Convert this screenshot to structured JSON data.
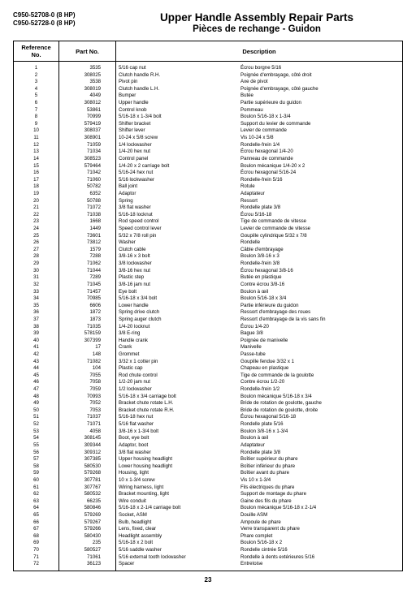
{
  "header": {
    "models": [
      "C950-52708-0 (8 HP)",
      "C950-52728-0 (8 HP)"
    ],
    "title_en": "Upper Handle Assembly Repair Parts",
    "title_fr": "Pièces de rechange - Guidon"
  },
  "columns": {
    "ref": "Reference No.",
    "part": "Part No.",
    "desc": "Description"
  },
  "page_number": "23",
  "rows": [
    {
      "ref": "1",
      "part": "3535",
      "en": "5/16 cap nut",
      "fr": "Écrou borgne 5/16"
    },
    {
      "ref": "2",
      "part": "308025",
      "en": "Clutch handle R.H.",
      "fr": "Poignée d'embrayage, côté droit"
    },
    {
      "ref": "3",
      "part": "3538",
      "en": "Pivot pin",
      "fr": "Axe de pivot"
    },
    {
      "ref": "4",
      "part": "308019",
      "en": "Clutch handle L.H.",
      "fr": "Poignée d'embrayage, côté gauche"
    },
    {
      "ref": "5",
      "part": "4049",
      "en": "Bumper",
      "fr": "Butée"
    },
    {
      "ref": "6",
      "part": "308012",
      "en": "Upper handle",
      "fr": "Partie supérieure du guidon"
    },
    {
      "ref": "7",
      "part": "53861",
      "en": "Control knob",
      "fr": "Pommeau"
    },
    {
      "ref": "8",
      "part": "70999",
      "en": "5/16-18 x 1-3/4 bolt",
      "fr": "Boulon 5/16-18 x 1-3/4"
    },
    {
      "ref": "9",
      "part": "579419",
      "en": "Shifter bracket",
      "fr": "Support du levier de commande"
    },
    {
      "ref": "10",
      "part": "308037",
      "en": "Shifter lever",
      "fr": "Levier de commande"
    },
    {
      "ref": "11",
      "part": "308901",
      "en": "10-24 x 5/8 screw",
      "fr": "Vis 10-24 x 5/8"
    },
    {
      "ref": "12",
      "part": "71059",
      "en": "1/4 lockwasher",
      "fr": "Rondelle-frein 1/4"
    },
    {
      "ref": "13",
      "part": "71034",
      "en": "1/4-20 hex nut",
      "fr": "Écrou hexagonal 1/4-20"
    },
    {
      "ref": "14",
      "part": "308523",
      "en": "Control panel",
      "fr": "Panneau de commande"
    },
    {
      "ref": "15",
      "part": "579464",
      "en": "1/4-20 x 2 carriage bolt",
      "fr": "Boulon mécanique 1/4-20 x 2"
    },
    {
      "ref": "16",
      "part": "71042",
      "en": "5/16-24 hex nut",
      "fr": "Écrou hexagonal 5/16-24"
    },
    {
      "ref": "17",
      "part": "71060",
      "en": "5/16 lockwasher",
      "fr": "Rondelle-frein 5/16"
    },
    {
      "ref": "18",
      "part": "50782",
      "en": "Ball joint",
      "fr": "Rotule"
    },
    {
      "ref": "19",
      "part": "6352",
      "en": "Adaptor",
      "fr": "Adaptateur"
    },
    {
      "ref": "20",
      "part": "50788",
      "en": "Spring",
      "fr": "Ressort"
    },
    {
      "ref": "21",
      "part": "71072",
      "en": "3/8 flat washer",
      "fr": "Rondelle plate 3/8"
    },
    {
      "ref": "22",
      "part": "71038",
      "en": "5/16-18 locknut",
      "fr": "Écrou 5/16-18"
    },
    {
      "ref": "23",
      "part": "1668",
      "en": "Rod speed control",
      "fr": "Tige de commande de vitesse"
    },
    {
      "ref": "24",
      "part": "1449",
      "en": "Speed control lever",
      "fr": "Levier de commande de vitesse"
    },
    {
      "ref": "25",
      "part": "73601",
      "en": "5/32 x 7/8 roll pin",
      "fr": "Goupille cylindrique 5/32 x 7/8"
    },
    {
      "ref": "26",
      "part": "73812",
      "en": "Washer",
      "fr": "Rondelle"
    },
    {
      "ref": "27",
      "part": "1579",
      "en": "Clutch cable",
      "fr": "Câble d'embrayage"
    },
    {
      "ref": "28",
      "part": "7288",
      "en": "3/8-16 x 3 bolt",
      "fr": "Boulon 3/8-16 x 3"
    },
    {
      "ref": "29",
      "part": "71062",
      "en": "3/8 lockwasher",
      "fr": "Rondelle-frein 3/8"
    },
    {
      "ref": "30",
      "part": "71044",
      "en": "3/8-16 hex nut",
      "fr": "Écrou hexagonal 3/8-16"
    },
    {
      "ref": "31",
      "part": "7289",
      "en": "Plastic step",
      "fr": "Butée en plastique"
    },
    {
      "ref": "32",
      "part": "71045",
      "en": "3/8-16 jam nut",
      "fr": "Contre écrou 3/8-16"
    },
    {
      "ref": "33",
      "part": "71457",
      "en": "Eye bolt",
      "fr": "Boulon à œil"
    },
    {
      "ref": "34",
      "part": "70985",
      "en": "5/16-18 x 3/4 bolt",
      "fr": "Boulon 5/16-18 x 3/4"
    },
    {
      "ref": "35",
      "part": "6606",
      "en": "Lower handle",
      "fr": "Partie inférieure du guidon"
    },
    {
      "ref": "36",
      "part": "1872",
      "en": "Spring drive clutch",
      "fr": "Ressort d'embrayage des roues"
    },
    {
      "ref": "37",
      "part": "1873",
      "en": "Spring auger clutch",
      "fr": "Ressort d'embrayage de la vis sans fin"
    },
    {
      "ref": "38",
      "part": "71035",
      "en": "1/4-20 locknut",
      "fr": "Écrou 1/4-20"
    },
    {
      "ref": "39",
      "part": "578159",
      "en": "3/8 E-ring",
      "fr": "Bague 3/8"
    },
    {
      "ref": "40",
      "part": "307399",
      "en": "Handle crank",
      "fr": "Poignée de manivelle"
    },
    {
      "ref": "41",
      "part": "17",
      "en": "Crank",
      "fr": "Manivelle"
    },
    {
      "ref": "42",
      "part": "148",
      "en": "Grommet",
      "fr": "Passe-tube"
    },
    {
      "ref": "43",
      "part": "71082",
      "en": "3/32 x 1 cotter pin",
      "fr": "Goupille fendue 3/32 x 1"
    },
    {
      "ref": "44",
      "part": "104",
      "en": "Plastic cap",
      "fr": "Chapeau en plastique"
    },
    {
      "ref": "45",
      "part": "7055",
      "en": "Rod chute control",
      "fr": "Tige de commande de la goulotte"
    },
    {
      "ref": "46",
      "part": "7058",
      "en": "1/2-20 jam nut",
      "fr": "Contre écrou 1/2-20"
    },
    {
      "ref": "47",
      "part": "7059",
      "en": "1/2 lockwasher",
      "fr": "Rondelle-frein 1/2"
    },
    {
      "ref": "48",
      "part": "70993",
      "en": "5/16-18 x 3/4 carriage bolt",
      "fr": "Boulon mécanique 5/16-18 x 3/4"
    },
    {
      "ref": "49",
      "part": "7052",
      "en": "Bracket chute rotate L.H.",
      "fr": "Bride de rotation de goulotte, gauche"
    },
    {
      "ref": "50",
      "part": "7053",
      "en": "Bracket chute rotate R.H.",
      "fr": "Bride de rotation de goulotte, droite"
    },
    {
      "ref": "51",
      "part": "71037",
      "en": "5/16-18 hex nut",
      "fr": "Écrou hexagonal 5/16-18"
    },
    {
      "ref": "52",
      "part": "71071",
      "en": "5/16 flat washer",
      "fr": "Rondelle plate 5/16"
    },
    {
      "ref": "53",
      "part": "4058",
      "en": "3/8-16 x 1-3/4 bolt",
      "fr": "Boulon 3/8-16 x 1-3/4"
    },
    {
      "ref": "54",
      "part": "308145",
      "en": "Boot, eye bolt",
      "fr": "Boulon à œil"
    },
    {
      "ref": "55",
      "part": "309344",
      "en": "Adaptor, boot",
      "fr": "Adaptateur"
    },
    {
      "ref": "56",
      "part": "309312",
      "en": "3/8 flat washer",
      "fr": "Rondelle plate 3/8"
    },
    {
      "ref": "57",
      "part": "307385",
      "en": "Upper housing headlight",
      "fr": "Boîtier supérieur du phare"
    },
    {
      "ref": "58",
      "part": "580530",
      "en": "Lower housing headlight",
      "fr": "Boîtier inférieur du phare"
    },
    {
      "ref": "59",
      "part": "579268",
      "en": "Housing, light",
      "fr": "Boîtier avant du phare"
    },
    {
      "ref": "60",
      "part": "307781",
      "en": "10 x 1-3/4 screw",
      "fr": "Vis 10 x 1-3/4"
    },
    {
      "ref": "61",
      "part": "307767",
      "en": "Wiring harness, light",
      "fr": "Fils électriques du phare"
    },
    {
      "ref": "62",
      "part": "580532",
      "en": "Bracket mounting, light",
      "fr": "Support de montage du phare"
    },
    {
      "ref": "63",
      "part": "66235",
      "en": "Wire conduit",
      "fr": "Gaine des fils du phare"
    },
    {
      "ref": "64",
      "part": "580846",
      "en": "5/16-18 x 2-1/4 carriage bolt",
      "fr": "Boulon mécanique 5/16-18 x 2-1/4"
    },
    {
      "ref": "65",
      "part": "579269",
      "en": "Socket, ASM",
      "fr": "Douille ASM"
    },
    {
      "ref": "66",
      "part": "579267",
      "en": "Bulb, headlight",
      "fr": "Ampoule de phare"
    },
    {
      "ref": "67",
      "part": "579266",
      "en": "Lens, fixed, clear",
      "fr": "Verre transparent du phare"
    },
    {
      "ref": "68",
      "part": "580430",
      "en": "Headlight assembly",
      "fr": "Phare complet"
    },
    {
      "ref": "69",
      "part": "235",
      "en": "5/16-18 x 2 bolt",
      "fr": "Boulon 5/16-18 x 2"
    },
    {
      "ref": "70",
      "part": "580527",
      "en": "5/16 saddle washer",
      "fr": "Rondelle cintrée 5/16"
    },
    {
      "ref": "71",
      "part": "71061",
      "en": "5/16 external tooth lockwasher",
      "fr": "Rondelle à dents extérieures 5/16"
    },
    {
      "ref": "72",
      "part": "36123",
      "en": "Spacer",
      "fr": "Entretoise"
    }
  ]
}
